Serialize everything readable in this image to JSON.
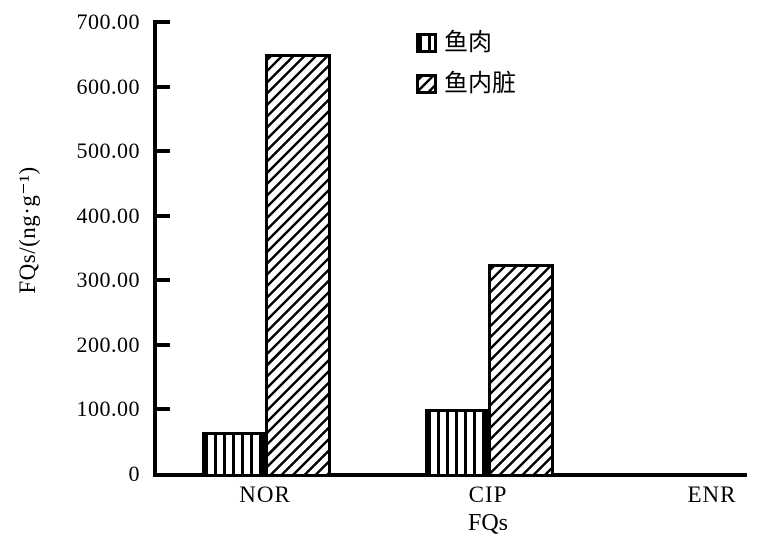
{
  "chart_data": {
    "type": "bar",
    "title": "",
    "xlabel": "FQs",
    "ylabel": "FQs/(ng·g⁻¹)",
    "categories": [
      "NOR",
      "CIP",
      "ENR"
    ],
    "series": [
      {
        "key": "fish-meat",
        "name": "鱼肉",
        "hatch": "vertical",
        "values": [
          65,
          100,
          0
        ]
      },
      {
        "key": "fish-viscera",
        "name": "鱼内脏",
        "hatch": "diagonal",
        "values": [
          650,
          325,
          0
        ]
      }
    ],
    "ylim": [
      0,
      700
    ],
    "ytick_step": 100,
    "ytick_labels": [
      "0",
      "100.00",
      "200.00",
      "300.00",
      "400.00",
      "500.00",
      "600.00",
      "700.00"
    ],
    "grid": "off",
    "legend_position": "top-center",
    "axis_color": "#000000",
    "bar_fill": "#ffffff",
    "hatch_color": "#000000"
  }
}
